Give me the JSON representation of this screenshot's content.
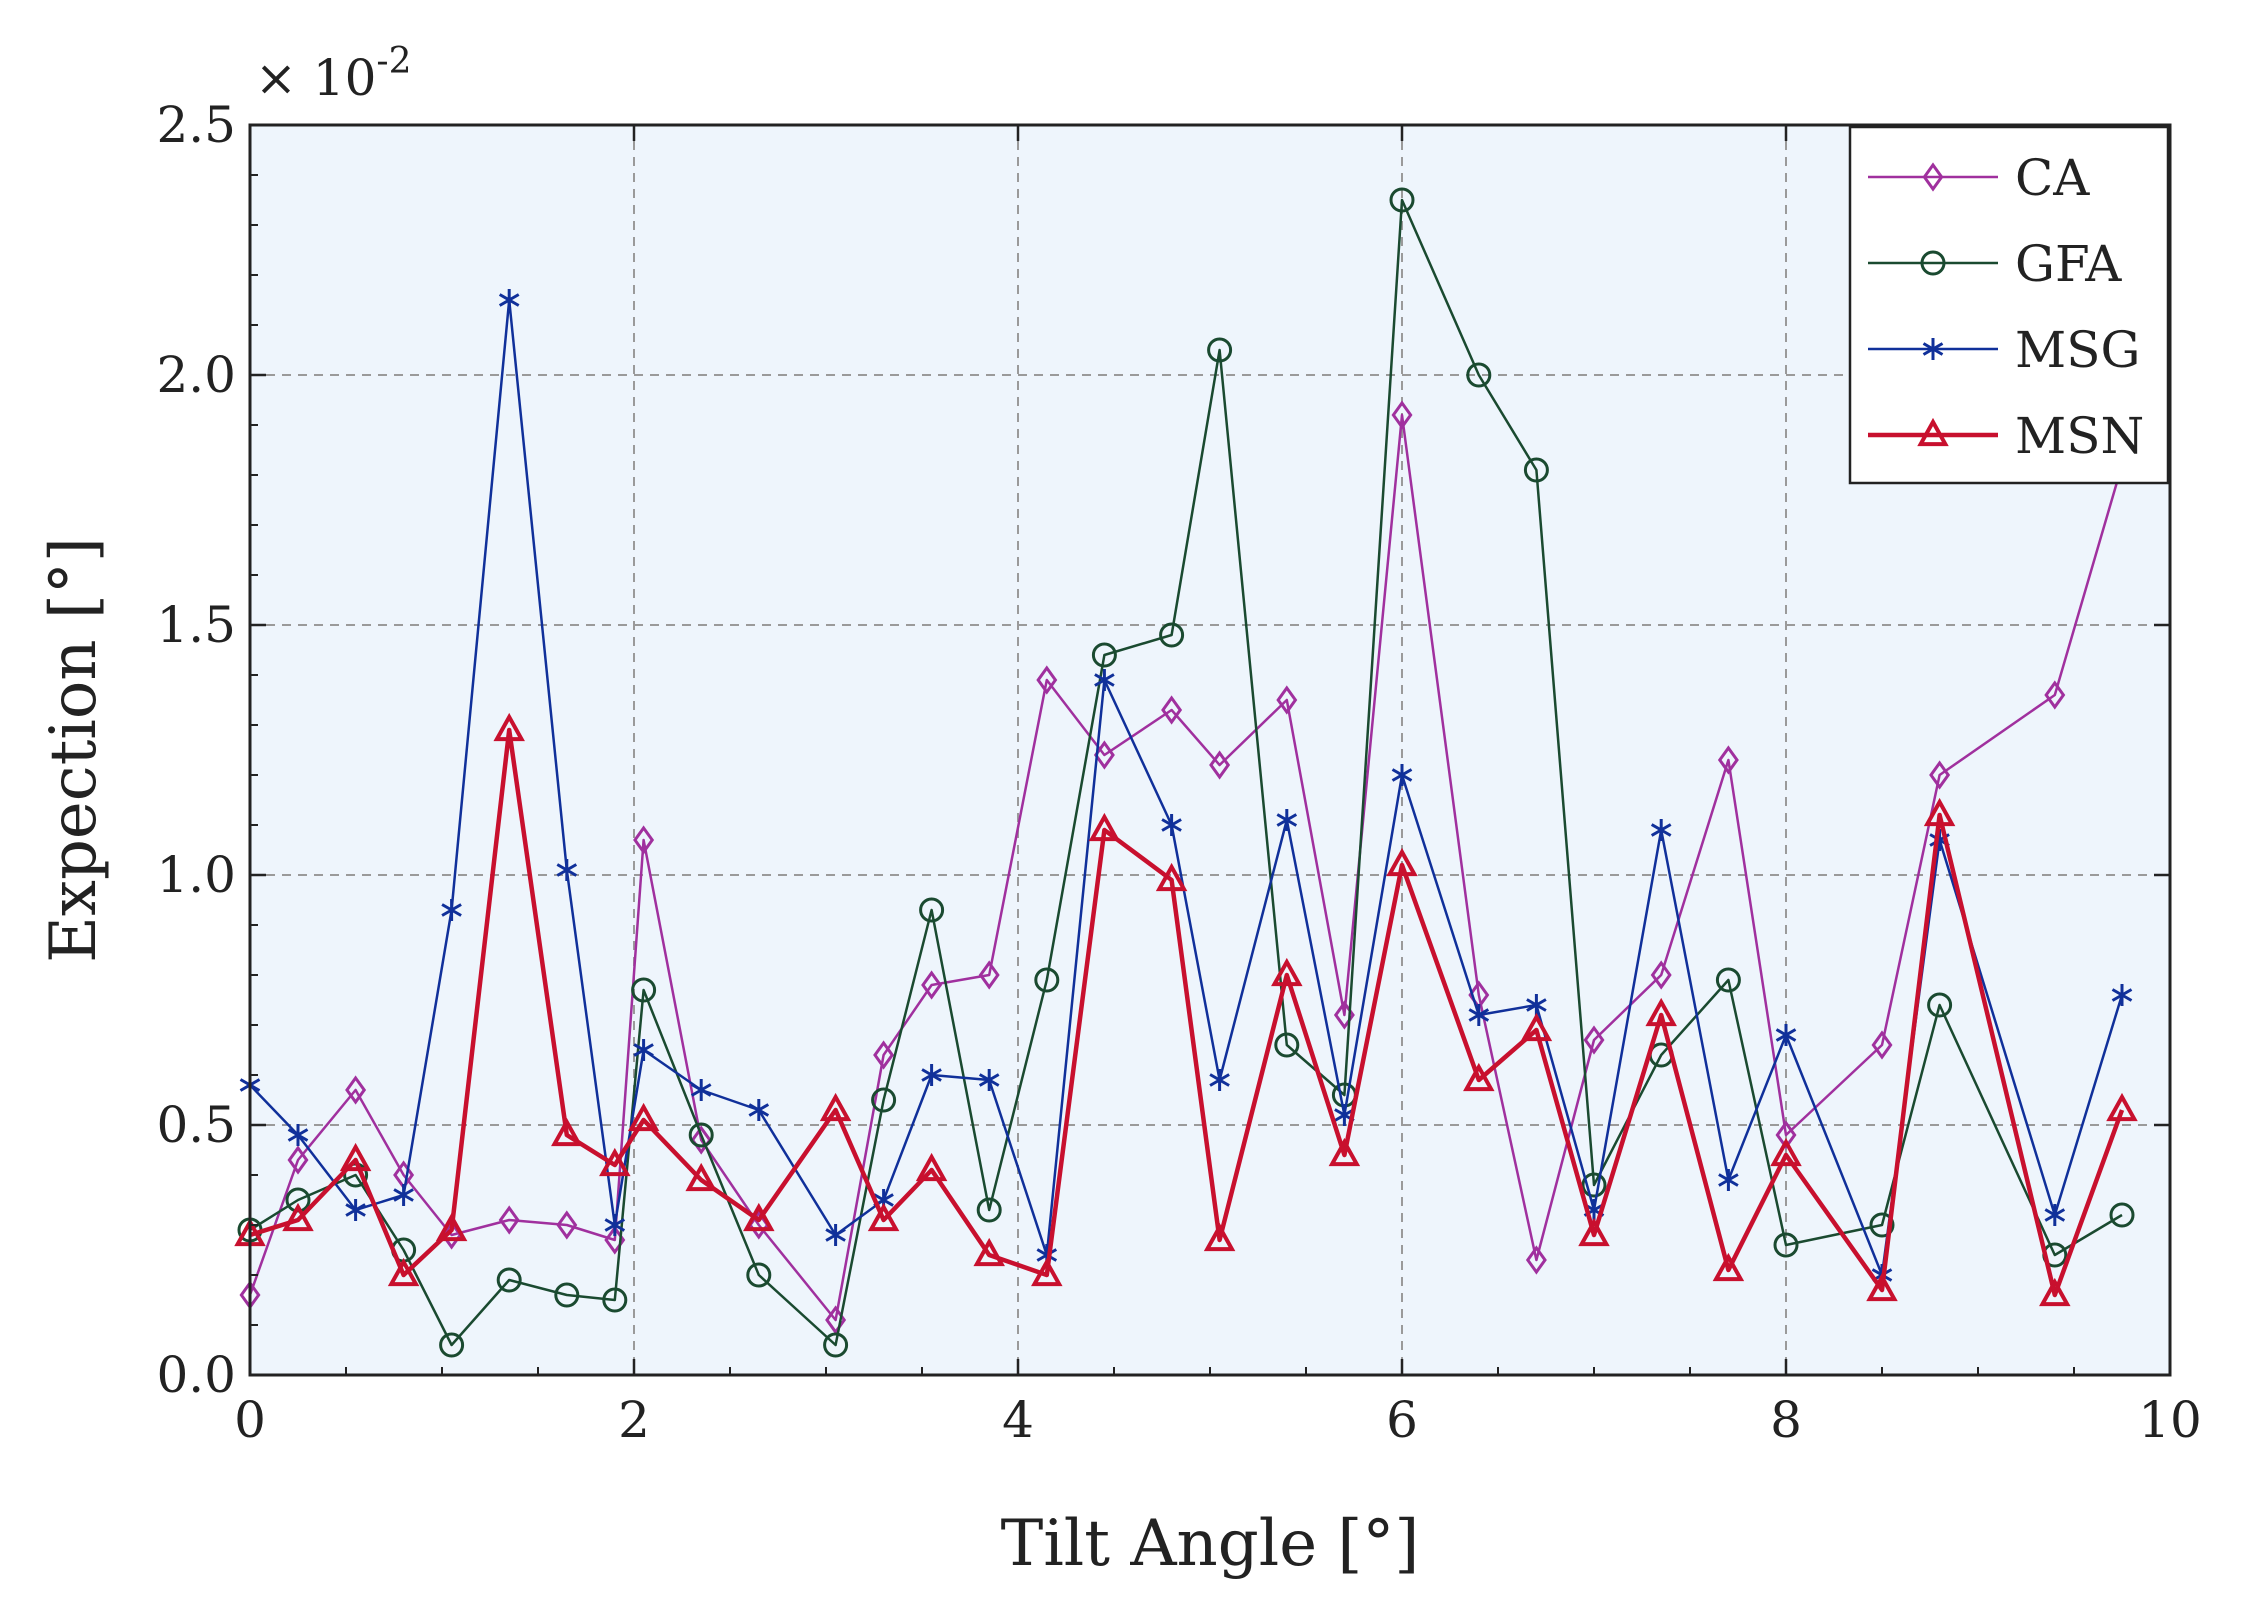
{
  "chart_data": {
    "type": "line",
    "scale_label": "× 10",
    "scale_exponent": "-2",
    "xlabel": "Tilt Angle [°]",
    "ylabel": "Expection [°]",
    "xlim": [
      0,
      10
    ],
    "ylim": [
      0,
      2.5
    ],
    "xticks": [
      0,
      2,
      4,
      6,
      8,
      10
    ],
    "xtick_labels": [
      "0",
      "2",
      "4",
      "6",
      "8",
      "10"
    ],
    "yticks": [
      0,
      0.5,
      1.0,
      1.5,
      2.0,
      2.5
    ],
    "ytick_labels": [
      "0.0",
      "0.5",
      "1.0",
      "1.5",
      "2.0",
      "2.5"
    ],
    "grid": true,
    "legend_position": "top-right",
    "colors": {
      "plot_background": "#eef5fc",
      "grid": "#9a9a9a"
    },
    "series": [
      {
        "name": "CA",
        "color": "#a0309e",
        "marker": "diamond",
        "line_width": 2.5,
        "points": [
          [
            0,
            0.16
          ],
          [
            0.25,
            0.43
          ],
          [
            0.55,
            0.57
          ],
          [
            0.8,
            0.4
          ],
          [
            1.05,
            0.28
          ],
          [
            1.35,
            0.31
          ],
          [
            1.65,
            0.3
          ],
          [
            1.9,
            0.27
          ],
          [
            2.05,
            1.07
          ],
          [
            2.35,
            0.47
          ],
          [
            2.65,
            0.3
          ],
          [
            3.05,
            0.11
          ],
          [
            3.3,
            0.64
          ],
          [
            3.55,
            0.78
          ],
          [
            3.85,
            0.8
          ],
          [
            4.15,
            1.39
          ],
          [
            4.45,
            1.24
          ],
          [
            4.8,
            1.33
          ],
          [
            5.05,
            1.22
          ],
          [
            5.4,
            1.35
          ],
          [
            5.7,
            0.72
          ],
          [
            6.0,
            1.92
          ],
          [
            6.4,
            0.76
          ],
          [
            6.7,
            0.23
          ],
          [
            7.0,
            0.67
          ],
          [
            7.35,
            0.8
          ],
          [
            7.7,
            1.23
          ],
          [
            8.0,
            0.48
          ],
          [
            8.5,
            0.66
          ],
          [
            8.8,
            1.2
          ],
          [
            9.4,
            1.36
          ],
          [
            9.75,
            1.82
          ]
        ]
      },
      {
        "name": "GFA",
        "color": "#1a4a30",
        "marker": "circle",
        "line_width": 2.5,
        "points": [
          [
            0,
            0.29
          ],
          [
            0.25,
            0.35
          ],
          [
            0.55,
            0.4
          ],
          [
            0.8,
            0.25
          ],
          [
            1.05,
            0.06
          ],
          [
            1.35,
            0.19
          ],
          [
            1.65,
            0.16
          ],
          [
            1.9,
            0.15
          ],
          [
            2.05,
            0.77
          ],
          [
            2.35,
            0.48
          ],
          [
            2.65,
            0.2
          ],
          [
            3.05,
            0.06
          ],
          [
            3.3,
            0.55
          ],
          [
            3.55,
            0.93
          ],
          [
            3.85,
            0.33
          ],
          [
            4.15,
            0.79
          ],
          [
            4.45,
            1.44
          ],
          [
            4.8,
            1.48
          ],
          [
            5.05,
            2.05
          ],
          [
            5.4,
            0.66
          ],
          [
            5.7,
            0.56
          ],
          [
            6.0,
            2.35
          ],
          [
            6.4,
            2.0
          ],
          [
            6.7,
            1.81
          ],
          [
            7.0,
            0.38
          ],
          [
            7.35,
            0.64
          ],
          [
            7.7,
            0.79
          ],
          [
            8.0,
            0.26
          ],
          [
            8.5,
            0.3
          ],
          [
            8.8,
            0.74
          ],
          [
            9.4,
            0.24
          ],
          [
            9.75,
            0.32
          ]
        ]
      },
      {
        "name": "MSG",
        "color": "#10309a",
        "marker": "asterisk",
        "line_width": 2.5,
        "points": [
          [
            0,
            0.58
          ],
          [
            0.25,
            0.48
          ],
          [
            0.55,
            0.33
          ],
          [
            0.8,
            0.36
          ],
          [
            1.05,
            0.93
          ],
          [
            1.35,
            2.15
          ],
          [
            1.65,
            1.01
          ],
          [
            1.9,
            0.3
          ],
          [
            2.05,
            0.65
          ],
          [
            2.35,
            0.57
          ],
          [
            2.65,
            0.53
          ],
          [
            3.05,
            0.28
          ],
          [
            3.3,
            0.35
          ],
          [
            3.55,
            0.6
          ],
          [
            3.85,
            0.59
          ],
          [
            4.15,
            0.24
          ],
          [
            4.45,
            1.39
          ],
          [
            4.8,
            1.1
          ],
          [
            5.05,
            0.59
          ],
          [
            5.4,
            1.11
          ],
          [
            5.7,
            0.52
          ],
          [
            6.0,
            1.2
          ],
          [
            6.4,
            0.72
          ],
          [
            6.7,
            0.74
          ],
          [
            7.0,
            0.33
          ],
          [
            7.35,
            1.09
          ],
          [
            7.7,
            0.39
          ],
          [
            8.0,
            0.68
          ],
          [
            8.5,
            0.2
          ],
          [
            8.8,
            1.07
          ],
          [
            9.4,
            0.32
          ],
          [
            9.75,
            0.76
          ]
        ]
      },
      {
        "name": "MSN",
        "color": "#c8102e",
        "marker": "triangle",
        "line_width": 4.5,
        "points": [
          [
            0,
            0.28
          ],
          [
            0.25,
            0.31
          ],
          [
            0.55,
            0.43
          ],
          [
            0.8,
            0.2
          ],
          [
            1.05,
            0.29
          ],
          [
            1.35,
            1.29
          ],
          [
            1.65,
            0.48
          ],
          [
            1.9,
            0.42
          ],
          [
            2.05,
            0.51
          ],
          [
            2.35,
            0.39
          ],
          [
            2.65,
            0.31
          ],
          [
            3.05,
            0.53
          ],
          [
            3.3,
            0.31
          ],
          [
            3.55,
            0.41
          ],
          [
            3.85,
            0.24
          ],
          [
            4.15,
            0.2
          ],
          [
            4.45,
            1.09
          ],
          [
            4.8,
            0.99
          ],
          [
            5.05,
            0.27
          ],
          [
            5.4,
            0.8
          ],
          [
            5.7,
            0.44
          ],
          [
            6.0,
            1.02
          ],
          [
            6.4,
            0.59
          ],
          [
            6.7,
            0.69
          ],
          [
            7.0,
            0.28
          ],
          [
            7.35,
            0.72
          ],
          [
            7.7,
            0.21
          ],
          [
            8.0,
            0.44
          ],
          [
            8.5,
            0.17
          ],
          [
            8.8,
            1.12
          ],
          [
            9.4,
            0.16
          ],
          [
            9.75,
            0.53
          ]
        ]
      }
    ]
  }
}
